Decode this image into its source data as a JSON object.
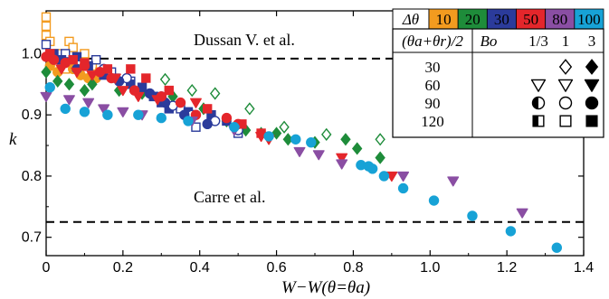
{
  "chart_data": {
    "type": "scatter",
    "xlabel": "W−W(θ=θa)",
    "ylabel": "k",
    "xlim": [
      0,
      1.4
    ],
    "ylim": [
      0.67,
      1.07
    ],
    "xticks": [
      "0",
      "0.2",
      "0.4",
      "0.6",
      "0.8",
      "1.0",
      "1.2",
      "1.4"
    ],
    "xtick_values": [
      0,
      0.2,
      0.4,
      0.6,
      0.8,
      1.0,
      1.2,
      1.4
    ],
    "yticks": [
      "0.7",
      "0.8",
      "0.9",
      "1.0"
    ],
    "ytick_values": [
      0.7,
      0.8,
      0.9,
      1.0
    ],
    "reference_lines": [
      {
        "label": "Dussan V. et al.",
        "y": 0.992
      },
      {
        "label": "Carre et al.",
        "y": 0.725
      }
    ],
    "delta_theta_legend": {
      "title": "Δθ",
      "entries": [
        {
          "label": "10",
          "color": "#f39b1f"
        },
        {
          "label": "20",
          "color": "#1e8c3a"
        },
        {
          "label": "30",
          "color": "#2b3b9b"
        },
        {
          "label": "50",
          "color": "#e4262b"
        },
        {
          "label": "80",
          "color": "#8a4ea3"
        },
        {
          "label": "100",
          "color": "#17a2d6"
        }
      ]
    },
    "marker_legend": {
      "row_header": "(θa+θr)/2",
      "bo_label": "Bo",
      "bo_values": [
        "1/3",
        "1",
        "3"
      ],
      "rows": [
        {
          "label": "30",
          "markers": [
            "",
            "diamond-open",
            "diamond-filled"
          ]
        },
        {
          "label": "60",
          "markers": [
            "triangle-open",
            "triangle-open",
            "triangle-filled"
          ]
        },
        {
          "label": "90",
          "markers": [
            "circle-half",
            "circle-open",
            "circle-filled"
          ]
        },
        {
          "label": "120",
          "markers": [
            "square-half",
            "square-open",
            "square-filled"
          ]
        }
      ]
    },
    "series": [
      {
        "color": "#f39b1f",
        "marker": "square-open",
        "points": [
          [
            0.0,
            1.06
          ],
          [
            0.0,
            1.045
          ],
          [
            0.0,
            1.03
          ],
          [
            0.01,
            1.02
          ],
          [
            0.03,
            1.0
          ],
          [
            0.05,
            0.99
          ],
          [
            0.06,
            1.02
          ],
          [
            0.07,
            1.01
          ],
          [
            0.09,
            0.99
          ],
          [
            0.1,
            1.0
          ],
          [
            0.12,
            0.98
          ],
          [
            0.14,
            0.97
          ],
          [
            0.05,
            0.975
          ],
          [
            0.08,
            0.985
          ]
        ]
      },
      {
        "color": "#f39b1f",
        "marker": "circle-filled",
        "points": [
          [
            0.01,
            0.98
          ],
          [
            0.03,
            0.97
          ],
          [
            0.05,
            0.99
          ],
          [
            0.07,
            0.975
          ],
          [
            0.09,
            0.965
          ],
          [
            0.11,
            0.96
          ],
          [
            0.13,
            0.96
          ]
        ]
      },
      {
        "color": "#1e8c3a",
        "marker": "diamond-open",
        "points": [
          [
            0.31,
            0.958
          ],
          [
            0.38,
            0.94
          ],
          [
            0.44,
            0.935
          ],
          [
            0.53,
            0.91
          ],
          [
            0.62,
            0.88
          ],
          [
            0.73,
            0.868
          ],
          [
            0.87,
            0.86
          ]
        ]
      },
      {
        "color": "#1e8c3a",
        "marker": "diamond-filled",
        "points": [
          [
            0.0,
            0.97
          ],
          [
            0.03,
            0.955
          ],
          [
            0.06,
            0.95
          ],
          [
            0.1,
            0.94
          ],
          [
            0.12,
            0.95
          ],
          [
            0.19,
            0.94
          ],
          [
            0.25,
            0.935
          ],
          [
            0.33,
            0.93
          ],
          [
            0.41,
            0.91
          ],
          [
            0.47,
            0.89
          ],
          [
            0.52,
            0.875
          ],
          [
            0.56,
            0.87
          ],
          [
            0.6,
            0.87
          ],
          [
            0.63,
            0.86
          ],
          [
            0.7,
            0.855
          ],
          [
            0.78,
            0.86
          ],
          [
            0.81,
            0.845
          ],
          [
            0.87,
            0.83
          ]
        ]
      },
      {
        "color": "#2b3b9b",
        "marker": "square-open",
        "points": [
          [
            0.0,
            1.015
          ],
          [
            0.05,
            1.0
          ],
          [
            0.13,
            0.99
          ],
          [
            0.17,
            0.97
          ],
          [
            0.22,
            0.955
          ],
          [
            0.28,
            0.93
          ],
          [
            0.35,
            0.91
          ],
          [
            0.39,
            0.88
          ],
          [
            0.5,
            0.87
          ]
        ]
      },
      {
        "color": "#2b3b9b",
        "marker": "square-filled",
        "points": [
          [
            0.02,
            1.0
          ],
          [
            0.04,
            0.99
          ],
          [
            0.08,
            0.995
          ],
          [
            0.11,
            0.98
          ],
          [
            0.15,
            0.965
          ],
          [
            0.18,
            0.96
          ],
          [
            0.22,
            0.95
          ],
          [
            0.25,
            0.945
          ],
          [
            0.28,
            0.93
          ],
          [
            0.3,
            0.92
          ],
          [
            0.32,
            0.91
          ],
          [
            0.37,
            0.905
          ],
          [
            0.43,
            0.9
          ],
          [
            0.47,
            0.89
          ]
        ]
      },
      {
        "color": "#2b3b9b",
        "marker": "circle-open",
        "points": [
          [
            0.15,
            0.975
          ],
          [
            0.21,
            0.96
          ],
          [
            0.3,
            0.93
          ],
          [
            0.33,
            0.915
          ],
          [
            0.38,
            0.9
          ],
          [
            0.44,
            0.89
          ],
          [
            0.5,
            0.875
          ]
        ]
      },
      {
        "color": "#2b3b9b",
        "marker": "circle-filled",
        "points": [
          [
            0.08,
            0.975
          ],
          [
            0.19,
            0.955
          ],
          [
            0.27,
            0.935
          ],
          [
            0.31,
            0.92
          ],
          [
            0.36,
            0.9
          ],
          [
            0.42,
            0.885
          ]
        ]
      },
      {
        "color": "#e4262b",
        "marker": "square-filled",
        "points": [
          [
            0.01,
            1.0
          ],
          [
            0.07,
            0.99
          ],
          [
            0.1,
            0.985
          ],
          [
            0.16,
            0.975
          ],
          [
            0.22,
            0.975
          ],
          [
            0.26,
            0.96
          ],
          [
            0.32,
            0.94
          ],
          [
            0.42,
            0.91
          ],
          [
            0.51,
            0.885
          ],
          [
            0.56,
            0.87
          ]
        ]
      },
      {
        "color": "#e4262b",
        "marker": "circle-filled",
        "points": [
          [
            0.0,
            0.995
          ],
          [
            0.02,
            0.99
          ],
          [
            0.05,
            0.985
          ],
          [
            0.1,
            0.98
          ],
          [
            0.14,
            0.97
          ],
          [
            0.17,
            0.96
          ],
          [
            0.23,
            0.94
          ],
          [
            0.3,
            0.93
          ],
          [
            0.35,
            0.92
          ],
          [
            0.39,
            0.9
          ],
          [
            0.47,
            0.895
          ],
          [
            0.5,
            0.885
          ]
        ]
      },
      {
        "color": "#e4262b",
        "marker": "triangle-filled",
        "points": [
          [
            0.04,
            0.975
          ],
          [
            0.08,
            0.97
          ],
          [
            0.12,
            0.965
          ],
          [
            0.18,
            0.96
          ],
          [
            0.2,
            0.94
          ],
          [
            0.24,
            0.93
          ],
          [
            0.29,
            0.925
          ],
          [
            0.39,
            0.92
          ],
          [
            0.56,
            0.865
          ],
          [
            0.58,
            0.86
          ],
          [
            0.77,
            0.83
          ],
          [
            0.9,
            0.8
          ]
        ]
      },
      {
        "color": "#8a4ea3",
        "marker": "triangle-filled",
        "points": [
          [
            0.0,
            0.93
          ],
          [
            0.06,
            0.925
          ],
          [
            0.11,
            0.92
          ],
          [
            0.15,
            0.91
          ],
          [
            0.2,
            0.905
          ],
          [
            0.25,
            0.9
          ],
          [
            0.38,
            0.89
          ],
          [
            0.49,
            0.875
          ],
          [
            0.66,
            0.84
          ],
          [
            0.71,
            0.835
          ],
          [
            0.77,
            0.82
          ],
          [
            0.93,
            0.8
          ],
          [
            1.06,
            0.792
          ],
          [
            1.24,
            0.74
          ]
        ]
      },
      {
        "color": "#17a2d6",
        "marker": "circle-filled",
        "points": [
          [
            0.01,
            0.945
          ],
          [
            0.05,
            0.91
          ],
          [
            0.1,
            0.905
          ],
          [
            0.16,
            0.9
          ],
          [
            0.24,
            0.9
          ],
          [
            0.3,
            0.895
          ],
          [
            0.37,
            0.89
          ],
          [
            0.49,
            0.88
          ],
          [
            0.58,
            0.865
          ],
          [
            0.65,
            0.86
          ],
          [
            0.69,
            0.855
          ],
          [
            0.82,
            0.818
          ],
          [
            0.84,
            0.816
          ],
          [
            0.85,
            0.812
          ],
          [
            0.88,
            0.8
          ],
          [
            0.93,
            0.78
          ],
          [
            1.01,
            0.76
          ],
          [
            1.11,
            0.735
          ],
          [
            1.21,
            0.71
          ],
          [
            1.33,
            0.683
          ]
        ]
      }
    ]
  }
}
